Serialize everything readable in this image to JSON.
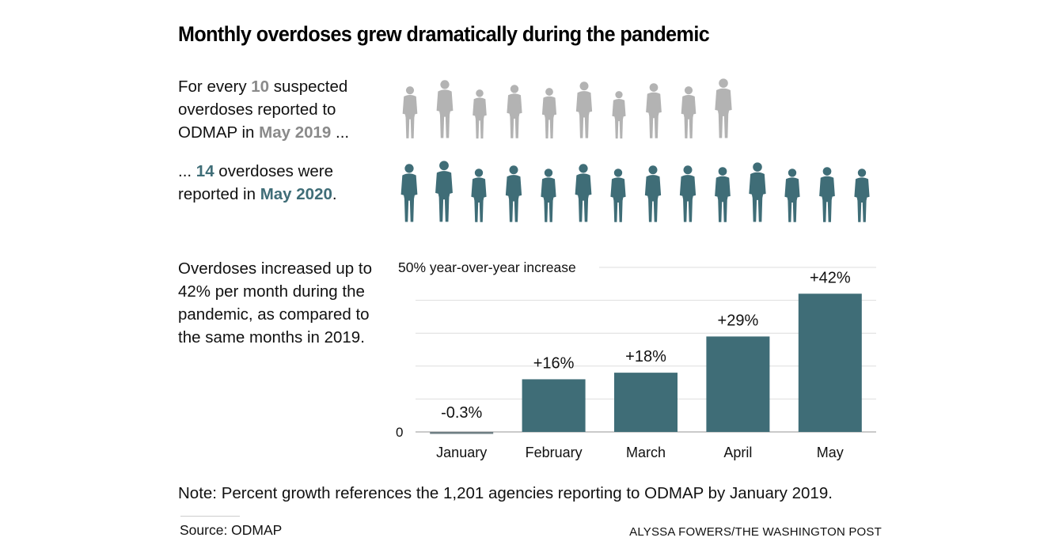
{
  "header": {
    "title": "Monthly overdoses grew dramatically during the pandemic"
  },
  "intro": {
    "line1_pre": "For every ",
    "line1_num": "10",
    "line1_post": " suspected overdoses reported to ODMAP in ",
    "line1_date": "May 2019",
    "line1_end": " ...",
    "line2_pre": "... ",
    "line2_num": "14",
    "line2_post": " overdoses were reported in ",
    "line2_date": "May 2020",
    "line2_end": "."
  },
  "pictogram": {
    "count_2019": 10,
    "count_2020": 14,
    "color_2019": "#b3b3b3",
    "color_2020": "#3f6d77",
    "icon": "person-silhouette-icon"
  },
  "description": "Overdoses increased up to 42% per month during the pandemic, as compared to the same months in 2019.",
  "chart_data": {
    "type": "bar",
    "title": "",
    "categories": [
      "January",
      "February",
      "March",
      "April",
      "May"
    ],
    "values": [
      -0.3,
      16,
      18,
      29,
      42
    ],
    "data_labels": [
      "-0.3%",
      "+16%",
      "+18%",
      "+29%",
      "+42%"
    ],
    "ylabel": "50% year-over-year increase",
    "xlabel": "",
    "ylim": [
      0,
      50
    ],
    "y_ticks": [
      0,
      10,
      20,
      30,
      40,
      50
    ],
    "y_tick_labels": [
      "0",
      "",
      "",
      "",
      "",
      "50% year-over-year increase"
    ],
    "grid": true,
    "bar_color": "#3f6d77",
    "negative_bar_color": "#6f7f84"
  },
  "footer": {
    "note": "Note: Percent growth references the 1,201 agencies reporting to ODMAP by January 2019.",
    "source": "Source: ODMAP",
    "credit": "ALYSSA FOWERS/THE WASHINGTON POST"
  }
}
